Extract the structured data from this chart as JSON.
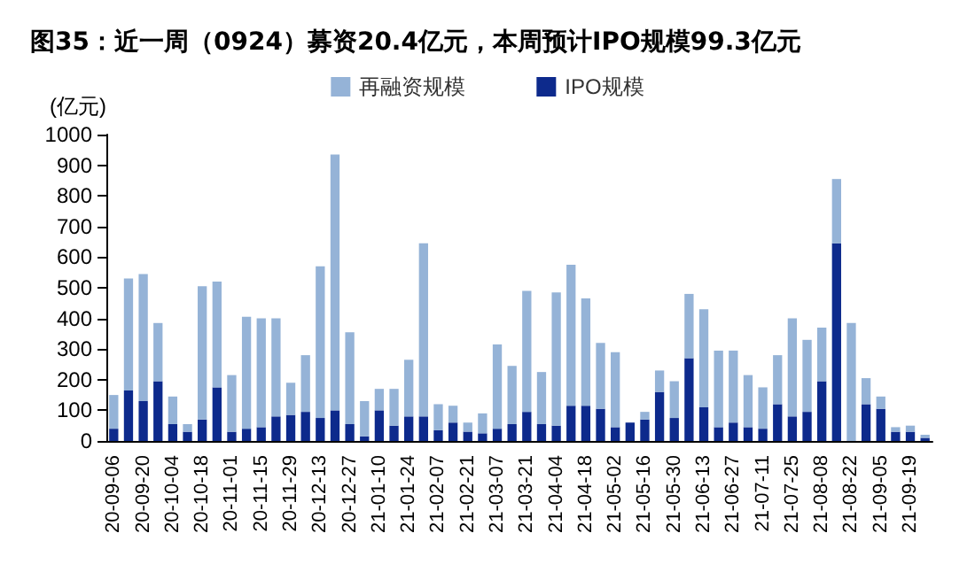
{
  "chart_data": {
    "type": "bar",
    "title": "图35：近一周（0924）募资20.4亿元，本周预计IPO规模99.3亿元",
    "ylabel": "(亿元)",
    "categories": [
      "20-09-06",
      null,
      "20-09-20",
      null,
      "20-10-04",
      null,
      "20-10-18",
      null,
      "20-11-01",
      null,
      "20-11-15",
      null,
      "20-11-29",
      null,
      "20-12-13",
      null,
      "20-12-27",
      null,
      "21-01-10",
      null,
      "21-01-24",
      null,
      "21-02-07",
      null,
      "21-02-21",
      null,
      "21-03-07",
      null,
      "21-03-21",
      null,
      "21-04-04",
      null,
      "21-04-18",
      null,
      "21-05-02",
      null,
      "21-05-16",
      null,
      "21-05-30",
      null,
      "21-06-13",
      null,
      "21-06-27",
      null,
      "21-07-11",
      null,
      "21-07-25",
      null,
      "21-08-08",
      null,
      "21-08-22",
      null,
      "21-09-05",
      null,
      "21-09-19",
      null
    ],
    "stacked": true,
    "series": [
      {
        "name": "IPO规模",
        "color": "#0d2a8c",
        "values": [
          40,
          165,
          130,
          195,
          55,
          30,
          70,
          175,
          30,
          40,
          45,
          80,
          85,
          95,
          75,
          100,
          55,
          15,
          100,
          50,
          80,
          80,
          35,
          60,
          30,
          25,
          40,
          55,
          95,
          55,
          50,
          115,
          115,
          105,
          45,
          60,
          70,
          160,
          75,
          270,
          110,
          45,
          60,
          45,
          40,
          120,
          80,
          95,
          195,
          645,
          0,
          120,
          105,
          30,
          30,
          10
        ]
      },
      {
        "name": "再融资规模",
        "color": "#95b3d7",
        "values": [
          110,
          365,
          415,
          190,
          90,
          25,
          435,
          345,
          185,
          365,
          355,
          320,
          105,
          185,
          495,
          835,
          300,
          115,
          70,
          120,
          185,
          565,
          85,
          55,
          30,
          65,
          275,
          190,
          395,
          170,
          435,
          460,
          350,
          215,
          245,
          0,
          25,
          70,
          120,
          210,
          320,
          250,
          235,
          170,
          135,
          160,
          320,
          235,
          175,
          210,
          385,
          85,
          40,
          15,
          20,
          10
        ]
      }
    ],
    "ylim": [
      0,
      1000
    ],
    "yticks": [
      0,
      100,
      200,
      300,
      400,
      500,
      600,
      700,
      800,
      900,
      1000
    ],
    "grid": false,
    "legend": "top"
  }
}
